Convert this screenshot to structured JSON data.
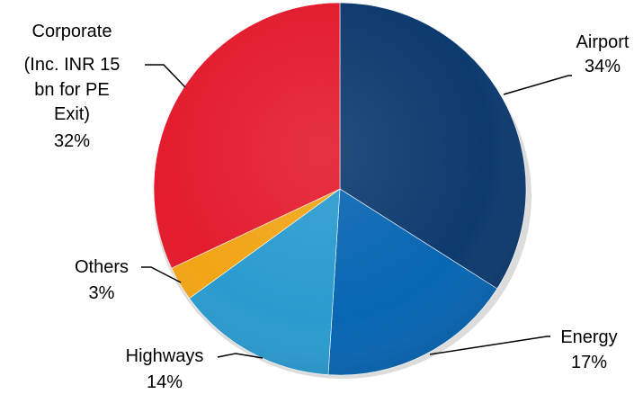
{
  "chart_data": {
    "type": "pie",
    "title": "",
    "legend": "none (direct labels with leader lines)",
    "slices": [
      {
        "name": "Airport",
        "value": 34,
        "label_lines": [
          "Airport",
          "34%"
        ],
        "color": "#0d3a6e"
      },
      {
        "name": "Energy",
        "value": 17,
        "label_lines": [
          "Energy",
          "17%"
        ],
        "color": "#0866b3"
      },
      {
        "name": "Highways",
        "value": 14,
        "label_lines": [
          "Highways",
          "14%"
        ],
        "color": "#2a9bcf"
      },
      {
        "name": "Others",
        "value": 3,
        "label_lines": [
          "Others",
          "3%"
        ],
        "color": "#f2a516"
      },
      {
        "name": "Corporate (Inc. INR 15 bn for PE Exit)",
        "value": 32,
        "label_lines": [
          "Corporate",
          "(Inc. INR 15",
          "bn for PE",
          "Exit)",
          "32%"
        ],
        "color": "#e31b2d"
      }
    ]
  }
}
